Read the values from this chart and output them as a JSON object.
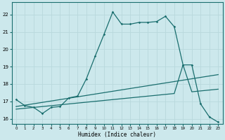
{
  "xlabel": "Humidex (Indice chaleur)",
  "bg_color": "#cce8ec",
  "grid_color": "#b8d8dc",
  "line_color": "#1a6e6e",
  "xlim": [
    -0.5,
    23.5
  ],
  "ylim": [
    15.7,
    22.7
  ],
  "yticks": [
    16,
    17,
    18,
    19,
    20,
    21,
    22
  ],
  "xticks": [
    0,
    1,
    2,
    3,
    4,
    5,
    6,
    7,
    8,
    9,
    10,
    11,
    12,
    13,
    14,
    15,
    16,
    17,
    18,
    19,
    20,
    21,
    22,
    23
  ],
  "curve1_x": [
    0,
    1,
    2,
    3,
    4,
    5,
    6,
    7,
    8,
    9,
    10,
    11,
    12,
    13,
    14,
    15,
    16,
    17,
    18,
    19,
    20,
    21,
    22,
    23
  ],
  "curve1_y": [
    17.1,
    16.75,
    16.65,
    16.3,
    16.65,
    16.7,
    17.2,
    17.3,
    18.3,
    19.6,
    20.85,
    22.15,
    21.45,
    21.45,
    21.55,
    21.55,
    21.6,
    21.9,
    21.3,
    19.1,
    19.1,
    16.85,
    16.1,
    15.8
  ],
  "curve2_x": [
    0,
    1,
    2,
    3,
    4,
    5,
    6,
    7,
    8,
    9,
    10,
    11,
    12,
    13,
    14,
    15,
    16,
    17,
    18,
    19,
    20,
    21,
    22,
    23
  ],
  "curve2_y": [
    16.7,
    16.78,
    16.86,
    16.94,
    17.02,
    17.1,
    17.18,
    17.26,
    17.34,
    17.42,
    17.5,
    17.58,
    17.66,
    17.74,
    17.82,
    17.9,
    17.98,
    18.06,
    18.14,
    18.22,
    18.3,
    18.38,
    18.46,
    18.54
  ],
  "curve3_x": [
    0,
    1,
    2,
    3,
    4,
    5,
    6,
    7,
    8,
    9,
    10,
    11,
    12,
    13,
    14,
    15,
    16,
    17,
    18,
    19,
    20,
    21,
    22,
    23
  ],
  "curve3_y": [
    16.55,
    16.6,
    16.65,
    16.7,
    16.75,
    16.8,
    16.85,
    16.9,
    16.95,
    17.0,
    17.05,
    17.1,
    17.15,
    17.2,
    17.25,
    17.3,
    17.35,
    17.4,
    17.45,
    19.1,
    17.55,
    17.6,
    17.65,
    17.7
  ]
}
